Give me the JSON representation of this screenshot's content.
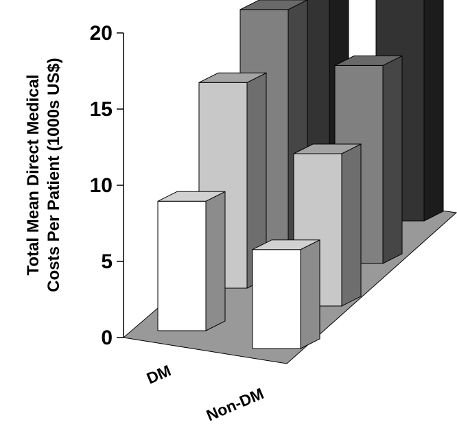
{
  "chart_data": {
    "type": "bar",
    "subtype": "3d-grouped-bar",
    "categories": [
      "DM",
      "Non-DM"
    ],
    "series": [
      {
        "color": "#ffffff",
        "values": [
          8.5,
          6.5
        ]
      },
      {
        "color": "#c8c8c8",
        "values": [
          13.5,
          10.0
        ]
      },
      {
        "color": "#808080",
        "values": [
          15.5,
          13.0
        ]
      },
      {
        "color": "#333333",
        "values": [
          16.5,
          15.0
        ]
      }
    ],
    "ylabel_lines": [
      "Total Mean Direct Medical",
      "Costs Per Patient (1000s US$)"
    ],
    "yticks": [
      "0",
      "5",
      "10",
      "15",
      "20"
    ],
    "ylim": [
      0,
      20
    ],
    "grid": false,
    "floor_color": "#999999"
  }
}
